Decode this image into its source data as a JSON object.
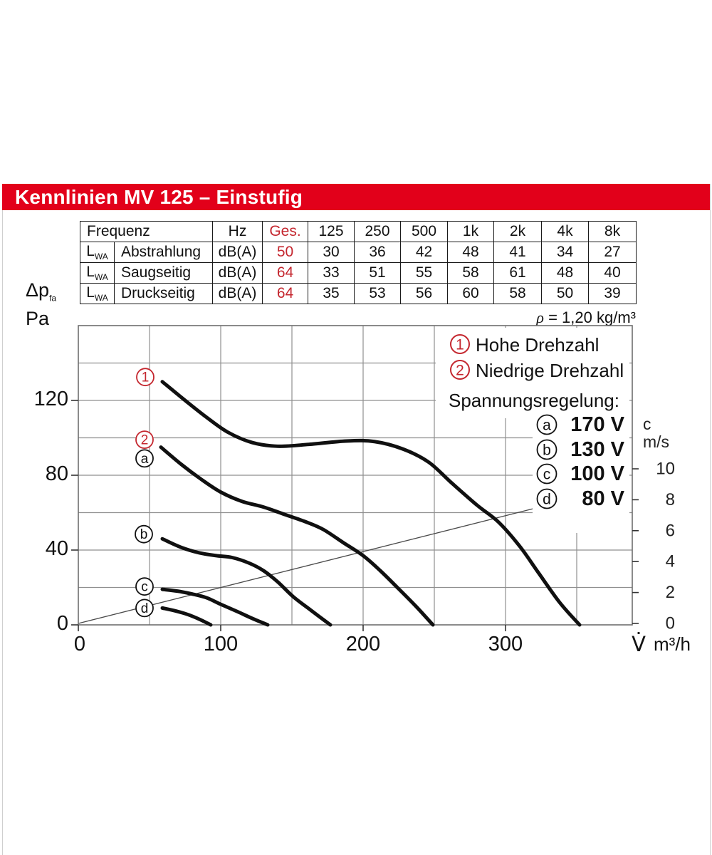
{
  "page": {
    "title": "Kennlinien MV 125 – Einstufig",
    "density_rho": "ρ",
    "density_rest": " = 1,20 kg/m³",
    "y_axis_title": {
      "main": "Δp",
      "sub": "fa",
      "unit": "Pa"
    }
  },
  "noise_table": {
    "header": {
      "col0": "Frequenz",
      "hz": "Hz",
      "ges": "Ges.",
      "bands": [
        "125",
        "250",
        "500",
        "1k",
        "2k",
        "4k",
        "8k"
      ]
    },
    "rows": [
      {
        "label_base": "L",
        "label_sub": "WA",
        "name": "Abstrahlung",
        "unit": "dB(A)",
        "total": "50",
        "values": [
          "30",
          "36",
          "42",
          "48",
          "41",
          "34",
          "27"
        ]
      },
      {
        "label_base": "L",
        "label_sub": "WA",
        "name": "Saugseitig",
        "unit": "dB(A)",
        "total": "64",
        "values": [
          "33",
          "51",
          "55",
          "58",
          "61",
          "48",
          "40"
        ]
      },
      {
        "label_base": "L",
        "label_sub": "WA",
        "name": "Druckseitig",
        "unit": "dB(A)",
        "total": "64",
        "values": [
          "35",
          "53",
          "56",
          "60",
          "58",
          "50",
          "39"
        ]
      }
    ]
  },
  "legend": {
    "speeds": [
      {
        "symbol": "1",
        "label": "Hohe Drehzahl"
      },
      {
        "symbol": "2",
        "label": "Niedrige Drehzahl"
      }
    ],
    "voltage_title": "Spannungsregelung:",
    "voltages": [
      {
        "symbol": "a",
        "label": "170 V"
      },
      {
        "symbol": "b",
        "label": "130 V"
      },
      {
        "symbol": "c",
        "label": "100 V"
      },
      {
        "symbol": "d",
        "label": "80 V"
      }
    ]
  },
  "chart_data": {
    "type": "line",
    "title": "Kennlinien MV 125 – Einstufig",
    "x_axis": {
      "symbol": "V̇",
      "unit": "m³/h",
      "min": 0,
      "max": 389,
      "ticks": [
        0,
        100,
        200,
        300
      ],
      "grid_step": 50
    },
    "y_axis": {
      "label": "Δp fa (Pa)",
      "min": 0,
      "max": 160,
      "ticks": [
        0,
        40,
        80,
        120
      ],
      "grid_step": 20
    },
    "y2_axis": {
      "label_line1": "c",
      "label_line2": "m/s",
      "min": 0,
      "max": 10,
      "ticks": [
        0,
        2,
        4,
        6,
        8,
        10
      ]
    },
    "series": [
      {
        "name": "1 Hohe Drehzahl",
        "points": [
          [
            59,
            130
          ],
          [
            75,
            120
          ],
          [
            90,
            111
          ],
          [
            105,
            103
          ],
          [
            122,
            97.5
          ],
          [
            140,
            95.5
          ],
          [
            162,
            96.5
          ],
          [
            188,
            98.3
          ],
          [
            208,
            98
          ],
          [
            228,
            94
          ],
          [
            246,
            87
          ],
          [
            262,
            76
          ],
          [
            280,
            64
          ],
          [
            295,
            55
          ],
          [
            310,
            42
          ],
          [
            323,
            28
          ],
          [
            338,
            12
          ],
          [
            352,
            0
          ]
        ]
      },
      {
        "name": "2/a Niedrige Drehzahl 170 V",
        "points": [
          [
            58,
            95
          ],
          [
            72,
            86
          ],
          [
            86,
            78
          ],
          [
            100,
            71
          ],
          [
            115,
            66
          ],
          [
            130,
            63
          ],
          [
            145,
            59
          ],
          [
            160,
            55
          ],
          [
            172,
            51
          ],
          [
            186,
            44
          ],
          [
            200,
            37
          ],
          [
            212,
            29
          ],
          [
            224,
            20
          ],
          [
            237,
            10
          ],
          [
            249,
            0
          ]
        ]
      },
      {
        "name": "b 130 V",
        "points": [
          [
            59,
            46
          ],
          [
            72,
            41.5
          ],
          [
            85,
            38.5
          ],
          [
            97,
            37
          ],
          [
            108,
            36
          ],
          [
            120,
            33
          ],
          [
            130,
            29
          ],
          [
            140,
            23
          ],
          [
            151,
            15
          ],
          [
            163,
            8
          ],
          [
            177,
            0
          ]
        ]
      },
      {
        "name": "c 100 V",
        "points": [
          [
            59,
            19
          ],
          [
            70,
            18
          ],
          [
            80,
            16.5
          ],
          [
            90,
            14.5
          ],
          [
            100,
            11
          ],
          [
            112,
            7
          ],
          [
            122,
            3.5
          ],
          [
            133,
            0
          ]
        ]
      },
      {
        "name": "d 80 V",
        "points": [
          [
            59,
            9
          ],
          [
            68,
            7.5
          ],
          [
            77,
            5.5
          ],
          [
            85,
            3
          ],
          [
            93,
            0
          ]
        ]
      },
      {
        "name": "air velocity reference line",
        "axis": "y2",
        "thin": true,
        "points": [
          [
            0,
            0
          ],
          [
            325,
            7.55
          ]
        ]
      }
    ],
    "markers": [
      {
        "symbol": "1",
        "color": "red",
        "v": 47,
        "pa": 132.5
      },
      {
        "symbol": "2",
        "color": "red",
        "v": 46.5,
        "pa": 99
      },
      {
        "symbol": "a",
        "color": "black",
        "v": 46.5,
        "pa": 89
      },
      {
        "symbol": "b",
        "color": "black",
        "v": 46,
        "pa": 48.5
      },
      {
        "symbol": "c",
        "color": "black",
        "v": 46.5,
        "pa": 20.5
      },
      {
        "symbol": "d",
        "color": "black",
        "v": 46.5,
        "pa": 9
      }
    ]
  },
  "colors": {
    "brand_red": "#e2001a",
    "accent_red": "#c4262e",
    "grid": "#8f8f8f",
    "curve": "#101010"
  }
}
